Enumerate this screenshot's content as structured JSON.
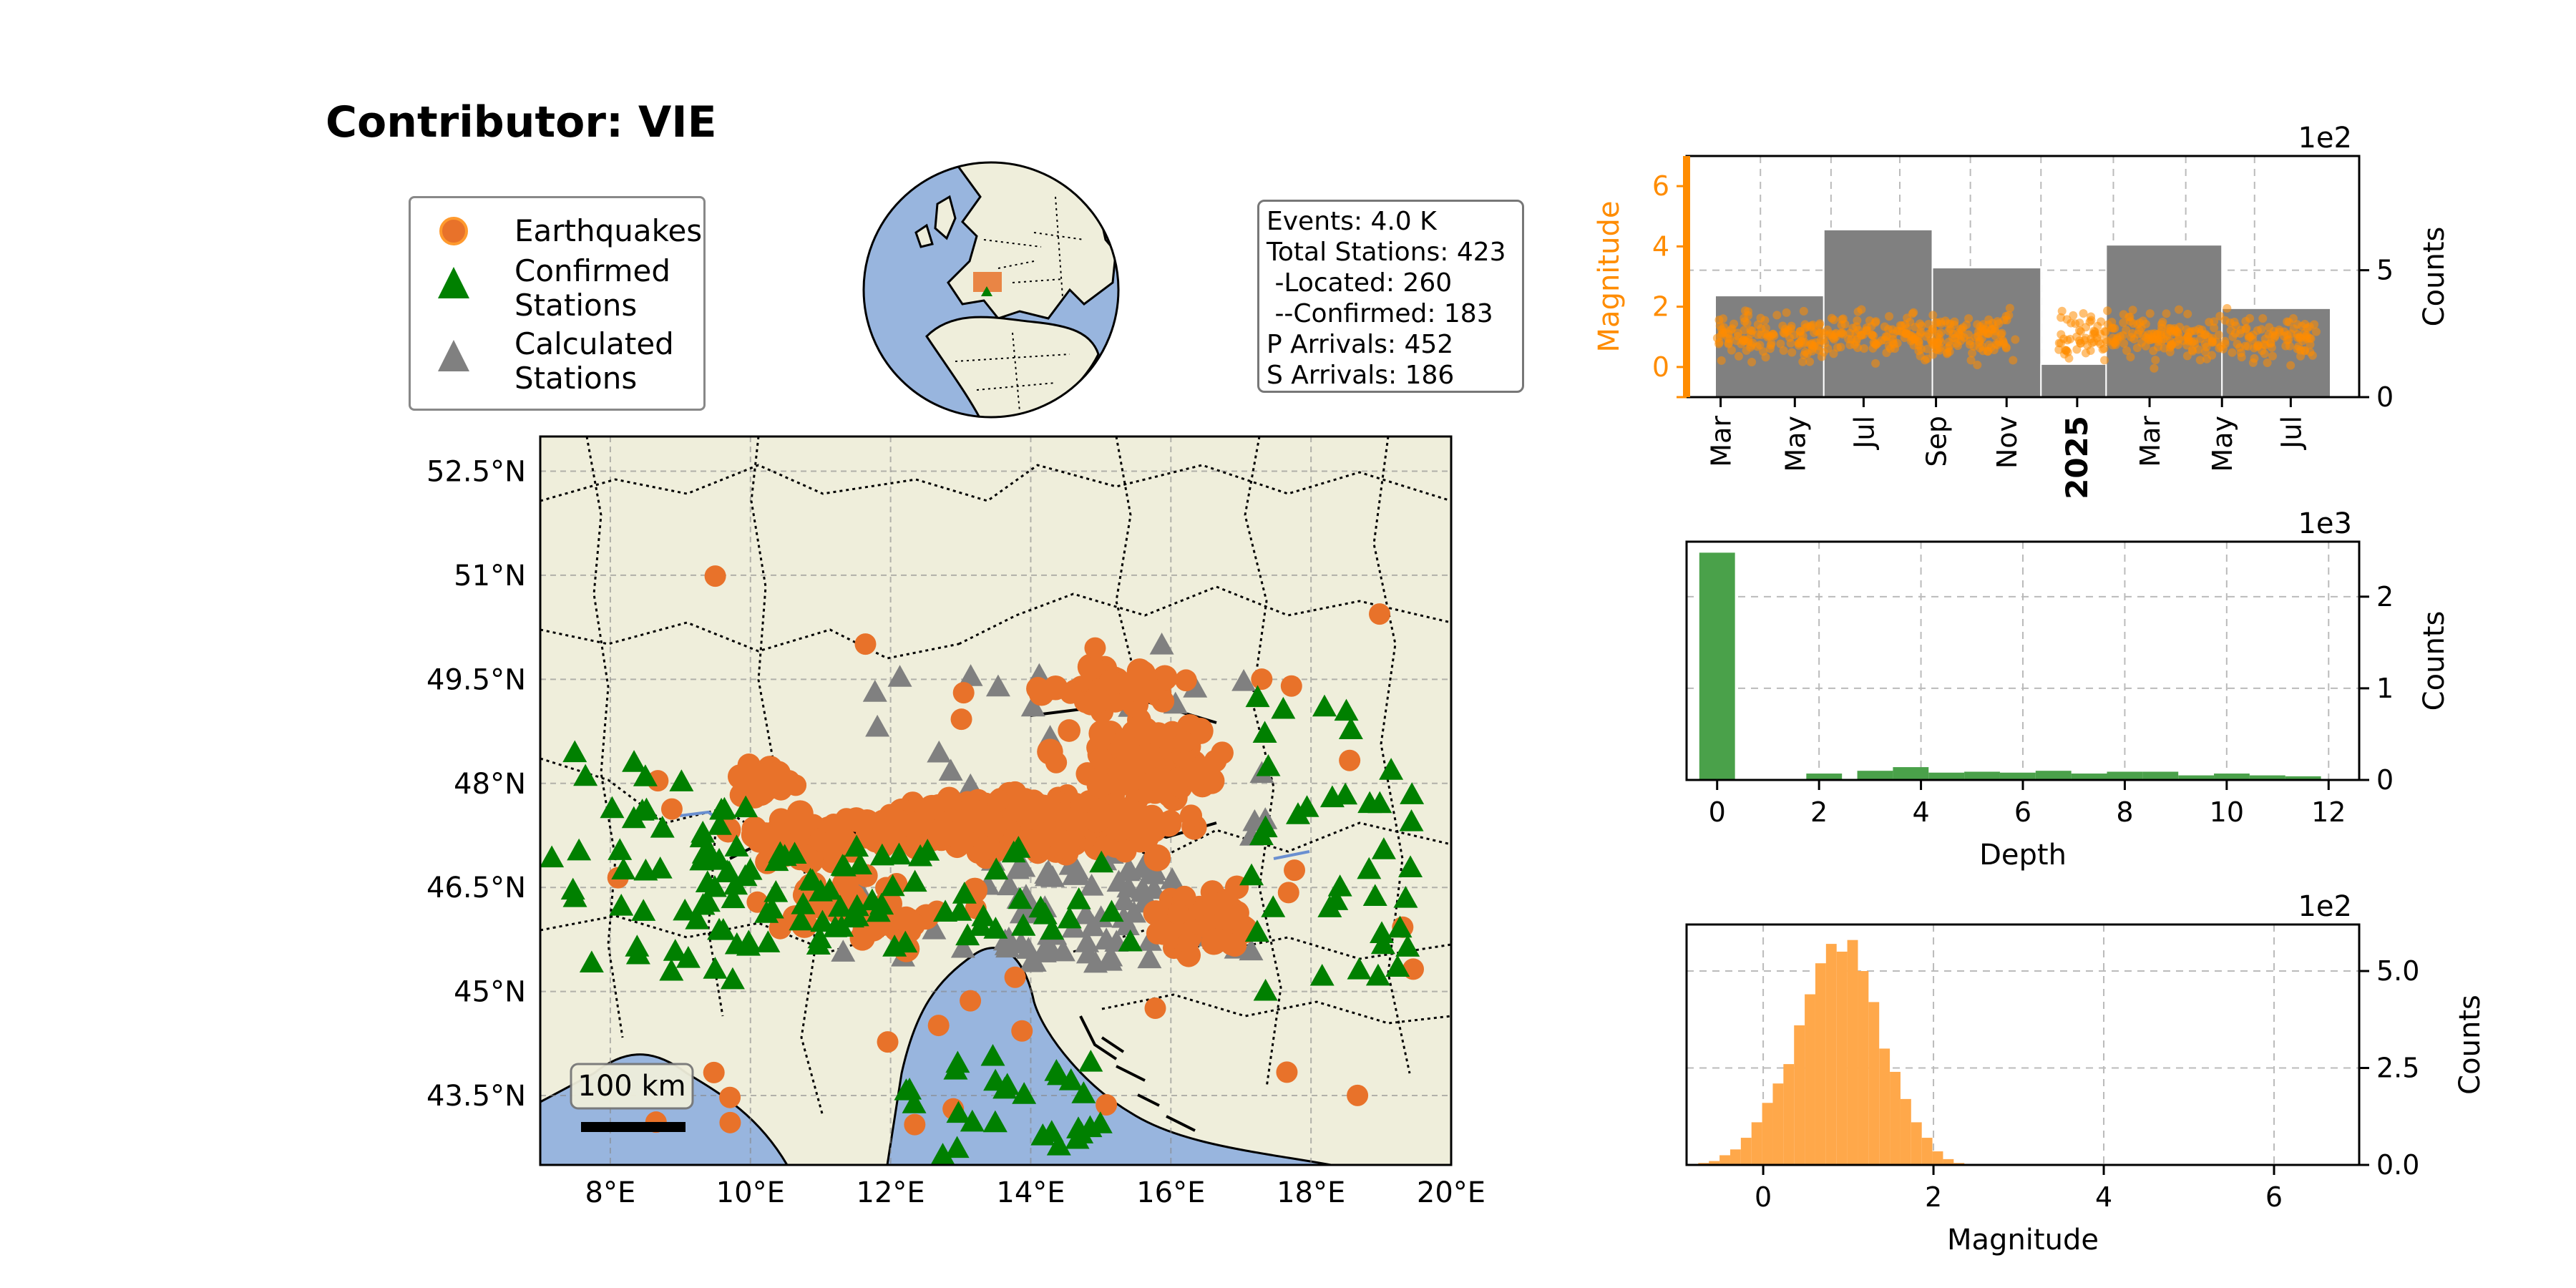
{
  "title": "Contributor: VIE",
  "legend": {
    "items": [
      {
        "label_lines": [
          "Earthquakes"
        ],
        "marker": "circle",
        "color": "#e8722a"
      },
      {
        "label_lines": [
          "Confirmed",
          "Stations"
        ],
        "marker": "triangle",
        "color": "#008000"
      },
      {
        "label_lines": [
          "Calculated",
          "Stations"
        ],
        "marker": "triangle",
        "color": "#808080"
      }
    ]
  },
  "stats": {
    "lines": [
      "Events: 4.0 K",
      "Total Stations: 423",
      " -Located: 260",
      " --Confirmed: 183",
      "P Arrivals: 452",
      "S Arrivals: 186"
    ]
  },
  "colors": {
    "land": "#efeedb",
    "ocean": "#98b5de",
    "earthquake": "#e8722a",
    "confirmed_station": "#008000",
    "calculated_station": "#808080",
    "magnitude_points": "#ff8c00",
    "time_bars": "#808080",
    "depth_bars": "#4aa14a",
    "magnitude_hist_bars": "#ffa84a"
  },
  "map": {
    "lon_ticks": [
      "8°E",
      "10°E",
      "12°E",
      "14°E",
      "16°E",
      "18°E",
      "20°E"
    ],
    "lat_ticks": [
      "52.5°N",
      "51°N",
      "49.5°N",
      "48°N",
      "46.5°N",
      "45°N",
      "43.5°N"
    ],
    "lon_range": [
      7,
      20
    ],
    "lat_range": [
      42.5,
      53
    ],
    "scale_bar_label": "100 km"
  },
  "chart_data": [
    {
      "type": "scatter",
      "id": "event-timeline",
      "ylabel": "Magnitude",
      "ylim": [
        -1,
        7
      ],
      "ytick_labels": [
        "0",
        "2",
        "4",
        "6"
      ],
      "xtick_labels": [
        "Mar",
        "May",
        "Jul",
        "Sep",
        "Nov",
        "2025",
        "Mar",
        "May",
        "Jul"
      ],
      "overlay": {
        "type": "bar",
        "ylabel": "Counts",
        "multiplier_label": "1e2",
        "ylim": [
          0,
          9.5
        ],
        "ytick_labels": [
          "0",
          "5"
        ],
        "bins": [
          "Mar–Jun 2024",
          "Jun–Sep 2024",
          "Sep–Dec 2024",
          "Dec 2024–Feb 2025",
          "Feb–May 2025",
          "May–Jul 2025"
        ],
        "values": [
          4.0,
          6.6,
          5.1,
          1.3,
          6.0,
          3.5
        ]
      },
      "magnitude_scatter_summary": {
        "typical_range": [
          0,
          2.5
        ],
        "gap": "Feb 2025"
      }
    },
    {
      "type": "bar",
      "id": "depth-histogram",
      "xlabel": "Depth",
      "ylabel": "Counts",
      "multiplier_label": "1e3",
      "xlim": [
        -0.6,
        12.6
      ],
      "ylim": [
        0,
        2.6
      ],
      "xtick_labels": [
        "0",
        "2",
        "4",
        "6",
        "8",
        "10",
        "12"
      ],
      "ytick_labels": [
        "0",
        "1",
        "2"
      ],
      "bin_width": 0.7,
      "bins": [
        {
          "x": 0.0,
          "value": 2.48
        },
        {
          "x": 2.1,
          "value": 0.07
        },
        {
          "x": 3.1,
          "value": 0.1
        },
        {
          "x": 3.8,
          "value": 0.14
        },
        {
          "x": 4.5,
          "value": 0.08
        },
        {
          "x": 5.2,
          "value": 0.09
        },
        {
          "x": 5.9,
          "value": 0.08
        },
        {
          "x": 6.6,
          "value": 0.1
        },
        {
          "x": 7.3,
          "value": 0.07
        },
        {
          "x": 8.0,
          "value": 0.09
        },
        {
          "x": 8.7,
          "value": 0.09
        },
        {
          "x": 9.4,
          "value": 0.05
        },
        {
          "x": 10.1,
          "value": 0.07
        },
        {
          "x": 10.8,
          "value": 0.05
        },
        {
          "x": 11.5,
          "value": 0.04
        }
      ]
    },
    {
      "type": "bar",
      "id": "magnitude-histogram",
      "xlabel": "Magnitude",
      "ylabel": "Counts",
      "multiplier_label": "1e2",
      "xlim": [
        -0.9,
        7.0
      ],
      "ylim": [
        0,
        6.2
      ],
      "xtick_labels": [
        "0",
        "2",
        "4",
        "6"
      ],
      "ytick_labels": [
        "0.0",
        "2.5",
        "5.0"
      ],
      "bin_width": 0.125,
      "bins": [
        {
          "x": -0.7,
          "value": 0.05
        },
        {
          "x": -0.575,
          "value": 0.1
        },
        {
          "x": -0.45,
          "value": 0.25
        },
        {
          "x": -0.325,
          "value": 0.4
        },
        {
          "x": -0.2,
          "value": 0.7
        },
        {
          "x": -0.075,
          "value": 1.1
        },
        {
          "x": 0.05,
          "value": 1.6
        },
        {
          "x": 0.175,
          "value": 2.1
        },
        {
          "x": 0.3,
          "value": 2.6
        },
        {
          "x": 0.425,
          "value": 3.6
        },
        {
          "x": 0.55,
          "value": 4.4
        },
        {
          "x": 0.675,
          "value": 5.2
        },
        {
          "x": 0.8,
          "value": 5.7
        },
        {
          "x": 0.925,
          "value": 5.5
        },
        {
          "x": 1.05,
          "value": 5.8
        },
        {
          "x": 1.175,
          "value": 5.0
        },
        {
          "x": 1.3,
          "value": 4.2
        },
        {
          "x": 1.425,
          "value": 3.0
        },
        {
          "x": 1.55,
          "value": 2.4
        },
        {
          "x": 1.675,
          "value": 1.7
        },
        {
          "x": 1.8,
          "value": 1.1
        },
        {
          "x": 1.925,
          "value": 0.7
        },
        {
          "x": 2.05,
          "value": 0.35
        },
        {
          "x": 2.175,
          "value": 0.15
        },
        {
          "x": 2.3,
          "value": 0.05
        }
      ]
    }
  ]
}
